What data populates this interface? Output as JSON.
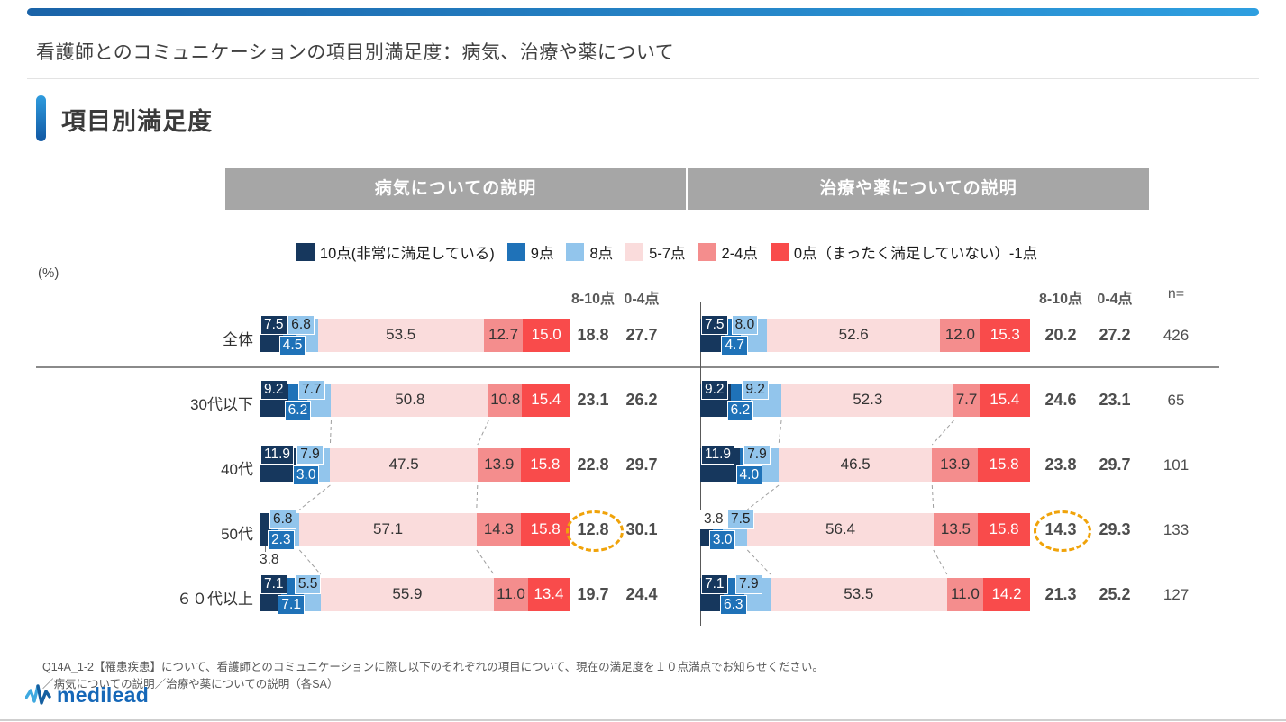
{
  "header": {
    "title": "看護師とのコミュニケーションの項目別満足度：病気、治療や薬について"
  },
  "section": {
    "heading": "項目別満足度"
  },
  "chart_data": {
    "type": "bar",
    "stacked": true,
    "orientation": "horizontal",
    "unit_label": "(%)",
    "value_range": [
      0,
      100
    ],
    "legend": [
      {
        "label": "10点(非常に満足している)",
        "color": "#16375D"
      },
      {
        "label": "9点",
        "color": "#1F72B8"
      },
      {
        "label": "8点",
        "color": "#92C5EC"
      },
      {
        "label": "5-7点",
        "color": "#FADCDC"
      },
      {
        "label": "2-4点",
        "color": "#F48D8D"
      },
      {
        "label": "0点（まったく満足していない）-1点",
        "color": "#F94B4B"
      }
    ],
    "summary_headers": [
      "8-10点",
      "0-4点"
    ],
    "n_header": "n=",
    "categories": [
      "全体",
      "30代以下",
      "40代",
      "50代",
      "６０代以上"
    ],
    "n_values": [
      "426",
      "65",
      "101",
      "133",
      "127"
    ],
    "annotation_circle_color": "#F0A30A",
    "panels": [
      {
        "title": "病気についての説明",
        "rows": [
          {
            "values": [
              7.5,
              4.5,
              6.8,
              53.5,
              12.7,
              15.0
            ],
            "summary_8_10": "18.8",
            "summary_0_4": "27.7"
          },
          {
            "values": [
              9.2,
              6.2,
              7.7,
              50.8,
              10.8,
              15.4
            ],
            "summary_8_10": "23.1",
            "summary_0_4": "26.2"
          },
          {
            "values": [
              11.9,
              3.0,
              7.9,
              47.5,
              13.9,
              15.8
            ],
            "summary_8_10": "22.8",
            "summary_0_4": "29.7"
          },
          {
            "values": [
              3.8,
              2.3,
              6.8,
              57.1,
              14.3,
              15.8
            ],
            "summary_8_10": "12.8",
            "summary_0_4": "30.1",
            "circled": true,
            "label10_position": "below"
          },
          {
            "values": [
              7.1,
              7.1,
              5.5,
              55.9,
              11.0,
              13.4
            ],
            "summary_8_10": "19.7",
            "summary_0_4": "24.4"
          }
        ]
      },
      {
        "title": "治療や薬についての説明",
        "rows": [
          {
            "values": [
              7.5,
              4.7,
              8.0,
              52.6,
              12.0,
              15.3
            ],
            "summary_8_10": "20.2",
            "summary_0_4": "27.2"
          },
          {
            "values": [
              9.2,
              6.2,
              9.2,
              52.3,
              7.7,
              15.4
            ],
            "summary_8_10": "24.6",
            "summary_0_4": "23.1"
          },
          {
            "values": [
              11.9,
              4.0,
              7.9,
              46.5,
              13.9,
              15.8
            ],
            "summary_8_10": "23.8",
            "summary_0_4": "29.7"
          },
          {
            "values": [
              3.8,
              3.0,
              7.5,
              56.4,
              13.5,
              15.8
            ],
            "summary_8_10": "14.3",
            "summary_0_4": "29.3",
            "circled": true,
            "label10_position": "white-box"
          },
          {
            "values": [
              7.1,
              6.3,
              7.9,
              53.5,
              11.0,
              14.2
            ],
            "summary_8_10": "21.3",
            "summary_0_4": "25.2"
          }
        ]
      }
    ]
  },
  "footer": {
    "note_line1": "Q14A_1-2【罹患疾患】について、看護師とのコミュニケーションに際し以下のそれぞれの項目について、現在の満足度を１０点満点でお知らせください。",
    "note_line2": "／病気についての説明／治療や薬についての説明（各SA）",
    "logo_text": "medilead"
  }
}
